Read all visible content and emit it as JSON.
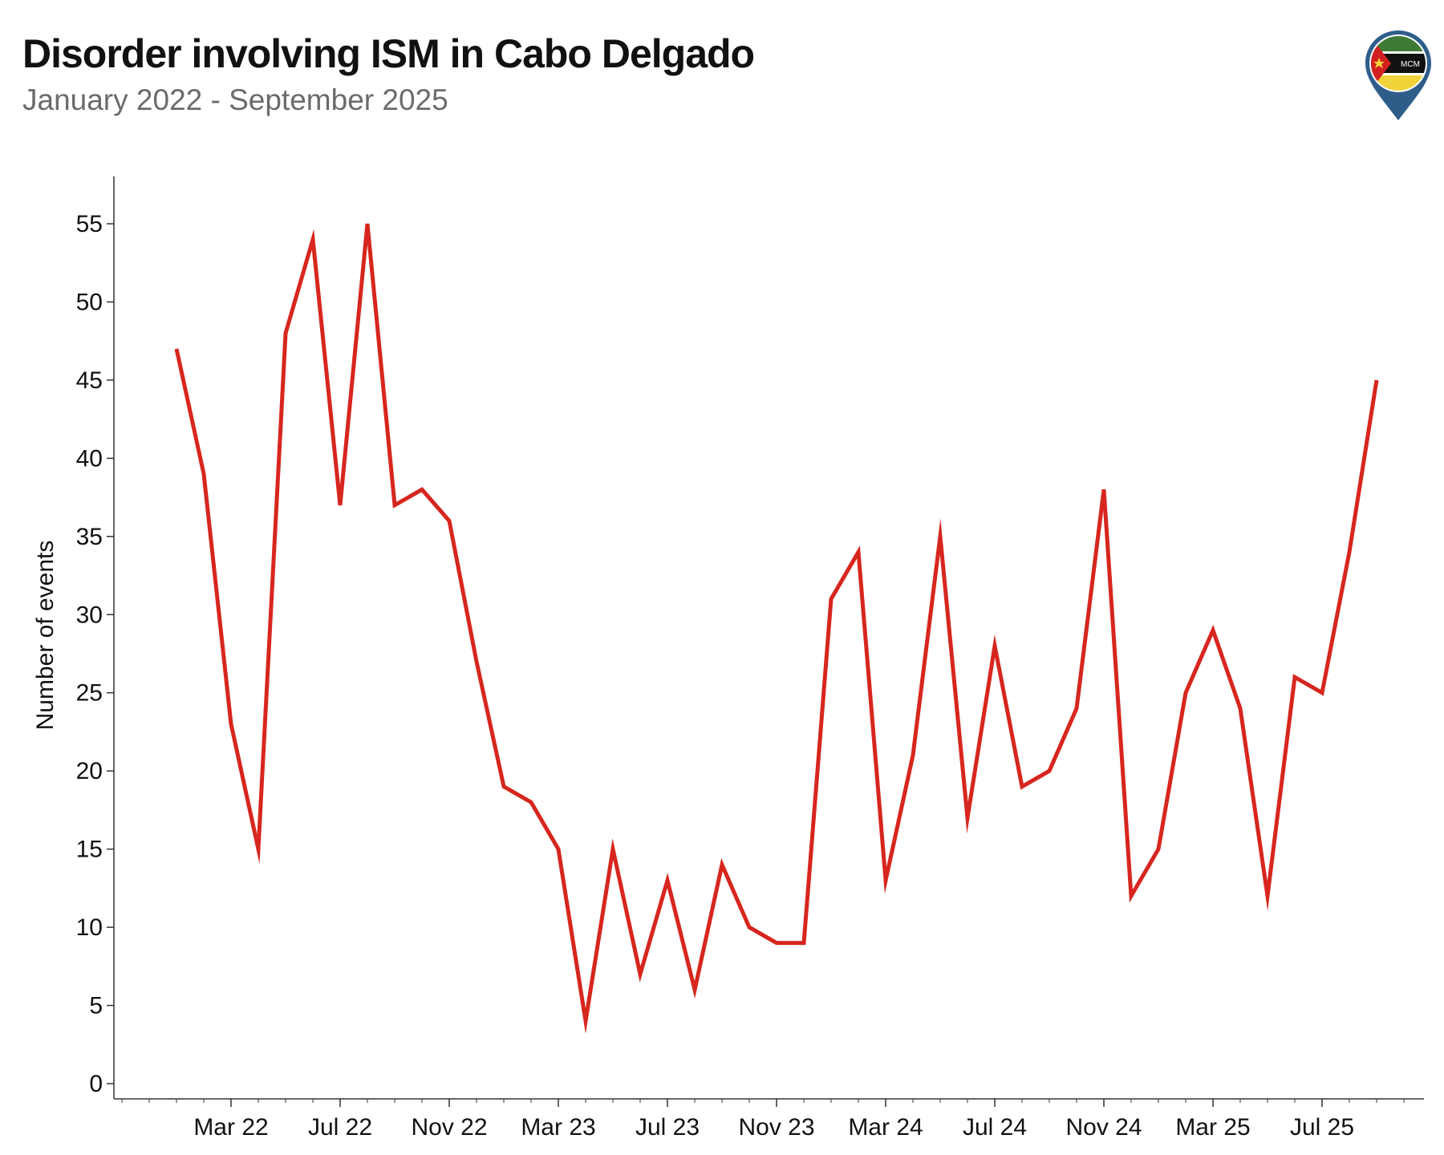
{
  "header": {
    "title": "Disorder involving ISM in Cabo Delgado",
    "subtitle": "January 2022 - September 2025",
    "logo_text": "MCM"
  },
  "chart_data": {
    "type": "line",
    "title": "Disorder involving ISM in Cabo Delgado",
    "subtitle": "January 2022 - September 2025",
    "ylabel": "Number of events",
    "xlabel": "",
    "ylim": [
      0,
      58
    ],
    "yticks": [
      0,
      5,
      10,
      15,
      20,
      25,
      30,
      35,
      40,
      45,
      50,
      55
    ],
    "xtick_labels": [
      "Mar 22",
      "Jul 22",
      "Nov 22",
      "Mar 23",
      "Jul 23",
      "Nov 23",
      "Mar 24",
      "Jul 24",
      "Nov 24",
      "Mar 25",
      "Jul 25"
    ],
    "xtick_months": [
      "2022-03",
      "2022-07",
      "2022-11",
      "2023-03",
      "2023-07",
      "2023-11",
      "2024-03",
      "2024-07",
      "2024-11",
      "2025-03",
      "2025-07"
    ],
    "grid": false,
    "line_color": "#d7261e",
    "series": [
      {
        "x": [
          "2022-01",
          "2022-02",
          "2022-03",
          "2022-04",
          "2022-05",
          "2022-06",
          "2022-07",
          "2022-08",
          "2022-09",
          "2022-10",
          "2022-11",
          "2022-12",
          "2023-01",
          "2023-02",
          "2023-03",
          "2023-04",
          "2023-05",
          "2023-06",
          "2023-07",
          "2023-08",
          "2023-09",
          "2023-10",
          "2023-11",
          "2023-12",
          "2024-01",
          "2024-02",
          "2024-03",
          "2024-04",
          "2024-05",
          "2024-06",
          "2024-07",
          "2024-08",
          "2024-09",
          "2024-10",
          "2024-11",
          "2024-12",
          "2025-01",
          "2025-02",
          "2025-03",
          "2025-04",
          "2025-05",
          "2025-06",
          "2025-07",
          "2025-08",
          "2025-09"
        ],
        "values": [
          47,
          39,
          23,
          15,
          48,
          54,
          37,
          55,
          37,
          38,
          36,
          27,
          19,
          18,
          15,
          4,
          15,
          7,
          13,
          6,
          14,
          10,
          9,
          9,
          31,
          34,
          13,
          21,
          35,
          17,
          28,
          19,
          20,
          24,
          38,
          12,
          15,
          25,
          29,
          24,
          12,
          26,
          25,
          34,
          45
        ]
      }
    ]
  }
}
